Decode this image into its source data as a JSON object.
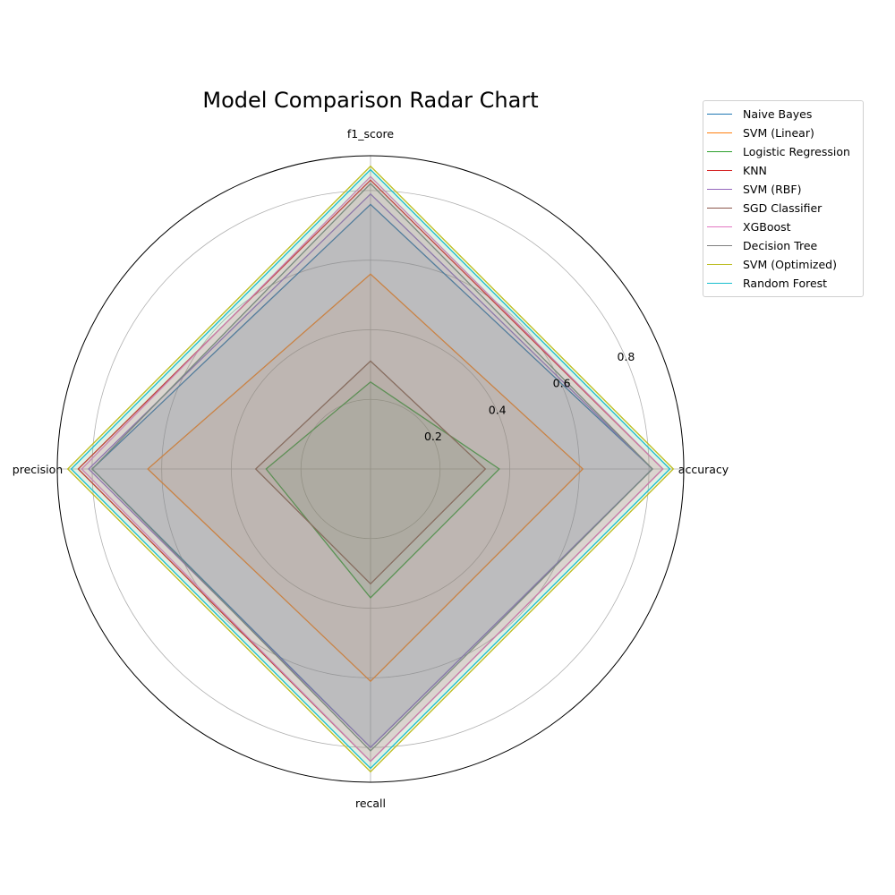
{
  "chart_data": {
    "type": "radar",
    "title": "Model Comparison Radar Chart",
    "axes": [
      "accuracy",
      "f1_score",
      "precision",
      "recall"
    ],
    "rlim": [
      0,
      0.9
    ],
    "rticks": [
      0.2,
      0.4,
      0.6,
      0.8
    ],
    "rtick_labels": [
      "0.2",
      "0.4",
      "0.6",
      "0.8"
    ],
    "grid": true,
    "legend_position": "upper-right outside",
    "series": [
      {
        "name": "Naive Bayes",
        "color": "#1f77b4",
        "values": [
          0.81,
          0.76,
          0.8,
          0.8
        ]
      },
      {
        "name": "SVM (Linear)",
        "color": "#ff7f0e",
        "values": [
          0.61,
          0.56,
          0.64,
          0.61
        ]
      },
      {
        "name": "Logistic Regression",
        "color": "#2ca02c",
        "values": [
          0.37,
          0.25,
          0.3,
          0.37
        ]
      },
      {
        "name": "KNN",
        "color": "#d62728",
        "values": [
          0.84,
          0.83,
          0.84,
          0.84
        ]
      },
      {
        "name": "SVM (RBF)",
        "color": "#9467bd",
        "values": [
          0.81,
          0.79,
          0.81,
          0.8
        ]
      },
      {
        "name": "SGD Classifier",
        "color": "#8c564b",
        "values": [
          0.33,
          0.31,
          0.33,
          0.33
        ]
      },
      {
        "name": "XGBoost",
        "color": "#e377c2",
        "values": [
          0.84,
          0.84,
          0.83,
          0.84
        ]
      },
      {
        "name": "Decision Tree",
        "color": "#7f7f7f",
        "values": [
          0.81,
          0.82,
          0.8,
          0.81
        ]
      },
      {
        "name": "SVM (Optimized)",
        "color": "#bcbd22",
        "values": [
          0.87,
          0.87,
          0.87,
          0.87
        ]
      },
      {
        "name": "Random Forest",
        "color": "#17becf",
        "values": [
          0.86,
          0.86,
          0.86,
          0.86
        ]
      }
    ]
  }
}
